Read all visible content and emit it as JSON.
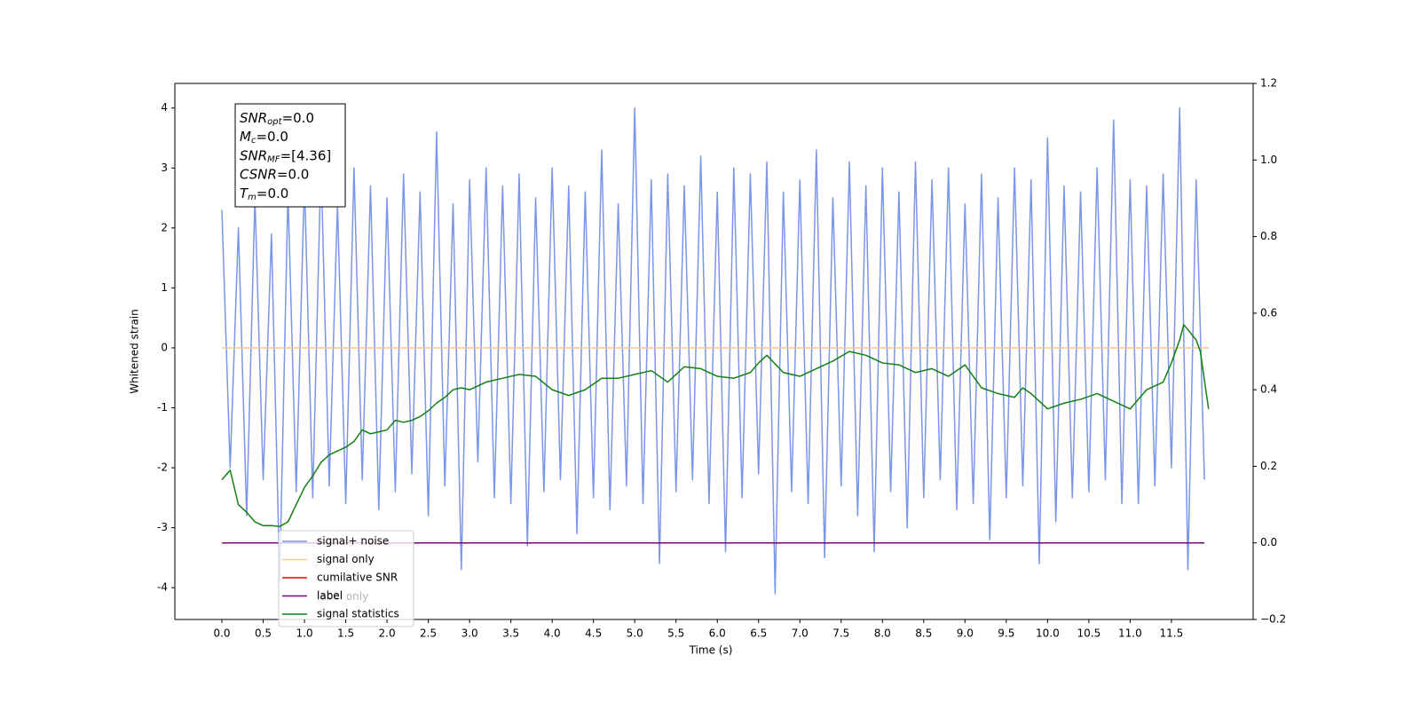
{
  "chart_data": {
    "type": "line",
    "xlabel": "Time (s)",
    "ylabel": "Whitened strain",
    "xlim": [
      -0.57,
      12.49
    ],
    "ylim": [
      -4.53,
      4.41
    ],
    "y2lim": [
      -0.2,
      1.2
    ],
    "xticks": [
      {
        "value": 0,
        "label": "0.0"
      },
      {
        "value": 0.5,
        "label": "0.5"
      },
      {
        "value": 1,
        "label": "1.0"
      },
      {
        "value": 1.5,
        "label": "1.5"
      },
      {
        "value": 2,
        "label": "2.0"
      },
      {
        "value": 2.5,
        "label": "2.5"
      },
      {
        "value": 3,
        "label": "3.0"
      },
      {
        "value": 3.5,
        "label": "3.5"
      },
      {
        "value": 4,
        "label": "4.0"
      },
      {
        "value": 4.5,
        "label": "4.5"
      },
      {
        "value": 5,
        "label": "5.0"
      },
      {
        "value": 5.5,
        "label": "5.5"
      },
      {
        "value": 6,
        "label": "6.0"
      },
      {
        "value": 6.5,
        "label": "6.5"
      },
      {
        "value": 7,
        "label": "7.0"
      },
      {
        "value": 7.5,
        "label": "7.5"
      },
      {
        "value": 8,
        "label": "8.0"
      },
      {
        "value": 8.5,
        "label": "8.5"
      },
      {
        "value": 9,
        "label": "9.0"
      },
      {
        "value": 9.5,
        "label": "9.5"
      },
      {
        "value": 10,
        "label": "10.0"
      },
      {
        "value": 10.5,
        "label": "10.5"
      },
      {
        "value": 11,
        "label": "11.0"
      },
      {
        "value": 11.5,
        "label": "11.5"
      }
    ],
    "yticks": [
      -4,
      -3,
      -2,
      -1,
      0,
      1,
      2,
      3,
      4
    ],
    "y2ticks": [
      {
        "value": -0.2,
        "label": "−0.2"
      },
      {
        "value": 0,
        "label": "0.0"
      },
      {
        "value": 0.2,
        "label": "0.2"
      },
      {
        "value": 0.4,
        "label": "0.4"
      },
      {
        "value": 0.6,
        "label": "0.6"
      },
      {
        "value": 0.8,
        "label": "0.8"
      },
      {
        "value": 1.0,
        "label": "1.0"
      },
      {
        "value": 1.2,
        "label": "1.2"
      }
    ],
    "annotation": [
      [
        "SNR",
        "opt",
        "=0.0"
      ],
      [
        "M",
        "c",
        "=0.0"
      ],
      [
        "SNR",
        "MF",
        "=[4.36]"
      ],
      [
        "CSNR",
        "",
        "=0.0"
      ],
      [
        "T",
        "m",
        "=0.0"
      ]
    ],
    "series": [
      {
        "name": "signal+ noise",
        "color": "#7b95e8",
        "x": [
          0.0,
          0.1,
          0.2,
          0.3,
          0.4,
          0.5,
          0.6,
          0.7,
          0.8,
          0.9,
          1.0,
          1.1,
          1.2,
          1.3,
          1.4,
          1.5,
          1.6,
          1.7,
          1.8,
          1.9,
          2.0,
          2.1,
          2.2,
          2.3,
          2.4,
          2.5,
          2.6,
          2.7,
          2.8,
          2.9,
          3.0,
          3.1,
          3.2,
          3.3,
          3.4,
          3.5,
          3.6,
          3.7,
          3.8,
          3.9,
          4.0,
          4.1,
          4.2,
          4.3,
          4.4,
          4.5,
          4.6,
          4.7,
          4.8,
          4.9,
          5.0,
          5.1,
          5.2,
          5.3,
          5.4,
          5.5,
          5.6,
          5.7,
          5.8,
          5.9,
          6.0,
          6.1,
          6.2,
          6.3,
          6.4,
          6.5,
          6.6,
          6.7,
          6.8,
          6.9,
          7.0,
          7.1,
          7.2,
          7.3,
          7.4,
          7.5,
          7.6,
          7.7,
          7.8,
          7.9,
          8.0,
          8.1,
          8.2,
          8.3,
          8.4,
          8.5,
          8.6,
          8.7,
          8.8,
          8.9,
          9.0,
          9.1,
          9.2,
          9.3,
          9.4,
          9.5,
          9.6,
          9.7,
          9.8,
          9.9,
          10.0,
          10.1,
          10.2,
          10.3,
          10.4,
          10.5,
          10.6,
          10.7,
          10.8,
          10.9,
          11.0,
          11.1,
          11.2,
          11.3,
          11.4,
          11.5,
          11.6,
          11.7,
          11.8,
          11.9
        ],
        "values": [
          2.3,
          -2.0,
          2.0,
          -2.8,
          2.5,
          -2.2,
          1.9,
          -3.9,
          2.6,
          -2.4,
          2.8,
          -2.5,
          3.1,
          -2.3,
          2.4,
          -2.6,
          3.0,
          -2.2,
          2.7,
          -2.7,
          2.5,
          -2.4,
          2.9,
          -2.1,
          2.6,
          -2.8,
          3.6,
          -2.3,
          2.4,
          -3.7,
          2.8,
          -1.9,
          3.0,
          -2.5,
          2.7,
          -2.6,
          2.9,
          -3.3,
          2.5,
          -2.4,
          3.0,
          -2.2,
          2.7,
          -3.1,
          2.6,
          -2.5,
          3.3,
          -2.7,
          2.4,
          -2.3,
          4.0,
          -2.6,
          2.8,
          -3.6,
          2.9,
          -2.4,
          2.7,
          -2.2,
          3.2,
          -2.6,
          2.6,
          -3.4,
          3.0,
          -2.5,
          2.9,
          -2.1,
          3.1,
          -4.1,
          2.6,
          -2.4,
          2.8,
          -2.6,
          3.3,
          -3.5,
          2.5,
          -2.3,
          3.1,
          -2.8,
          2.7,
          -3.4,
          3.0,
          -2.4,
          2.6,
          -3.0,
          3.1,
          -2.5,
          2.8,
          -2.2,
          3.0,
          -2.7,
          2.4,
          -2.6,
          2.9,
          -3.2,
          2.5,
          -2.5,
          3.0,
          -2.3,
          2.8,
          -3.6,
          3.5,
          -2.9,
          2.7,
          -2.5,
          2.6,
          -2.4,
          3.0,
          -2.2,
          3.8,
          -2.6,
          2.8,
          -2.6,
          2.7,
          -2.3,
          2.9,
          -2.0,
          4.0,
          -3.7,
          2.8,
          -2.2
        ]
      },
      {
        "name": "signal only",
        "color": "#f7c98a",
        "x": [
          0.0,
          11.95
        ],
        "values": [
          0,
          0
        ]
      },
      {
        "name": "cumilative SNR",
        "color": "#ff0000",
        "x": [],
        "values": []
      },
      {
        "name": "label",
        "color": "#800080",
        "axis": "y2",
        "x": [
          0.0,
          11.9
        ],
        "values": [
          0,
          0
        ]
      },
      {
        "name": "label only",
        "x": [],
        "values": []
      },
      {
        "name": "signal statistics",
        "color": "#138013",
        "axis": "y2",
        "x": [
          0.0,
          0.1,
          0.2,
          0.3,
          0.4,
          0.5,
          0.6,
          0.7,
          0.8,
          0.9,
          1.0,
          1.1,
          1.2,
          1.3,
          1.4,
          1.5,
          1.6,
          1.7,
          1.8,
          1.9,
          2.0,
          2.1,
          2.2,
          2.3,
          2.4,
          2.5,
          2.6,
          2.7,
          2.8,
          2.9,
          3.0,
          3.2,
          3.4,
          3.6,
          3.8,
          4.0,
          4.2,
          4.4,
          4.6,
          4.8,
          5.0,
          5.2,
          5.4,
          5.6,
          5.8,
          6.0,
          6.2,
          6.4,
          6.5,
          6.6,
          6.8,
          7.0,
          7.2,
          7.4,
          7.6,
          7.8,
          8.0,
          8.2,
          8.4,
          8.6,
          8.8,
          9.0,
          9.2,
          9.4,
          9.6,
          9.7,
          9.8,
          10.0,
          10.2,
          10.4,
          10.6,
          10.8,
          11.0,
          11.2,
          11.4,
          11.5,
          11.6,
          11.65,
          11.8,
          11.85,
          11.95
        ],
        "values": [
          0.165,
          0.19,
          0.1,
          0.08,
          0.055,
          0.045,
          0.045,
          0.043,
          0.055,
          0.1,
          0.145,
          0.175,
          0.21,
          0.23,
          0.24,
          0.25,
          0.265,
          0.295,
          0.285,
          0.29,
          0.295,
          0.32,
          0.315,
          0.32,
          0.33,
          0.345,
          0.365,
          0.38,
          0.4,
          0.405,
          0.4,
          0.42,
          0.43,
          0.44,
          0.435,
          0.4,
          0.385,
          0.4,
          0.43,
          0.43,
          0.44,
          0.45,
          0.42,
          0.46,
          0.455,
          0.435,
          0.43,
          0.445,
          0.47,
          0.49,
          0.445,
          0.435,
          0.455,
          0.475,
          0.5,
          0.49,
          0.47,
          0.465,
          0.445,
          0.455,
          0.435,
          0.465,
          0.405,
          0.39,
          0.38,
          0.405,
          0.39,
          0.35,
          0.365,
          0.375,
          0.39,
          0.37,
          0.35,
          0.4,
          0.42,
          0.47,
          0.53,
          0.57,
          0.53,
          0.5,
          0.35
        ]
      }
    ]
  }
}
